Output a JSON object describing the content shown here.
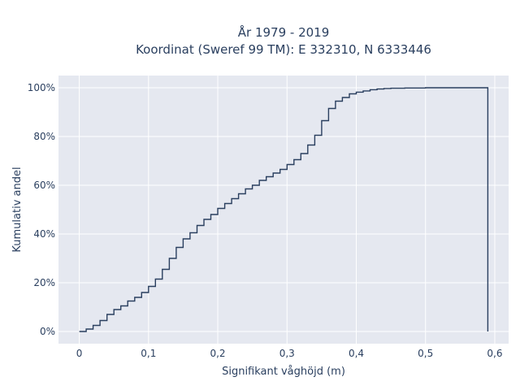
{
  "chart_data": {
    "type": "line",
    "subtype": "ecdf-step",
    "title_lines": [
      "År 1979 - 2019",
      "Koordinat (Sweref 99 TM): E 332310, N 6333446"
    ],
    "xlabel": "Signifikant våghöjd (m)",
    "ylabel": "Kumulativ andel",
    "xlim": [
      -0.03,
      0.62
    ],
    "ylim": [
      -0.05,
      1.05
    ],
    "xticks": [
      0,
      0.1,
      0.2,
      0.3,
      0.4,
      0.5,
      0.6
    ],
    "xtick_labels": [
      "0",
      "0,1",
      "0,2",
      "0,3",
      "0,4",
      "0,5",
      "0,6"
    ],
    "yticks": [
      0,
      0.2,
      0.4,
      0.6,
      0.8,
      1.0
    ],
    "ytick_labels": [
      "0%",
      "20%",
      "40%",
      "60%",
      "80%",
      "100%"
    ],
    "grid": true,
    "colors": {
      "plot_bg": "#e5e8f0",
      "grid": "#ffffff",
      "line": "#2a3f5f",
      "text": "#2a3f5f"
    },
    "series": [
      {
        "x": [
          0.0,
          0.01,
          0.02,
          0.03,
          0.04,
          0.05,
          0.06,
          0.07,
          0.08,
          0.09,
          0.1,
          0.11,
          0.12,
          0.13,
          0.14,
          0.15,
          0.16,
          0.17,
          0.18,
          0.19,
          0.2,
          0.21,
          0.22,
          0.23,
          0.24,
          0.25,
          0.26,
          0.27,
          0.28,
          0.29,
          0.3,
          0.31,
          0.32,
          0.33,
          0.34,
          0.35,
          0.36,
          0.37,
          0.38,
          0.39,
          0.4,
          0.41,
          0.42,
          0.43,
          0.44,
          0.45,
          0.47,
          0.5,
          0.55,
          0.59
        ],
        "y": [
          0.0,
          0.01,
          0.025,
          0.045,
          0.07,
          0.09,
          0.105,
          0.125,
          0.14,
          0.16,
          0.185,
          0.215,
          0.255,
          0.3,
          0.345,
          0.38,
          0.405,
          0.435,
          0.46,
          0.48,
          0.505,
          0.525,
          0.545,
          0.565,
          0.585,
          0.6,
          0.62,
          0.635,
          0.65,
          0.665,
          0.685,
          0.705,
          0.73,
          0.765,
          0.805,
          0.865,
          0.915,
          0.945,
          0.96,
          0.975,
          0.982,
          0.987,
          0.992,
          0.995,
          0.997,
          0.998,
          0.999,
          1.0,
          1.0,
          1.0
        ]
      }
    ]
  }
}
